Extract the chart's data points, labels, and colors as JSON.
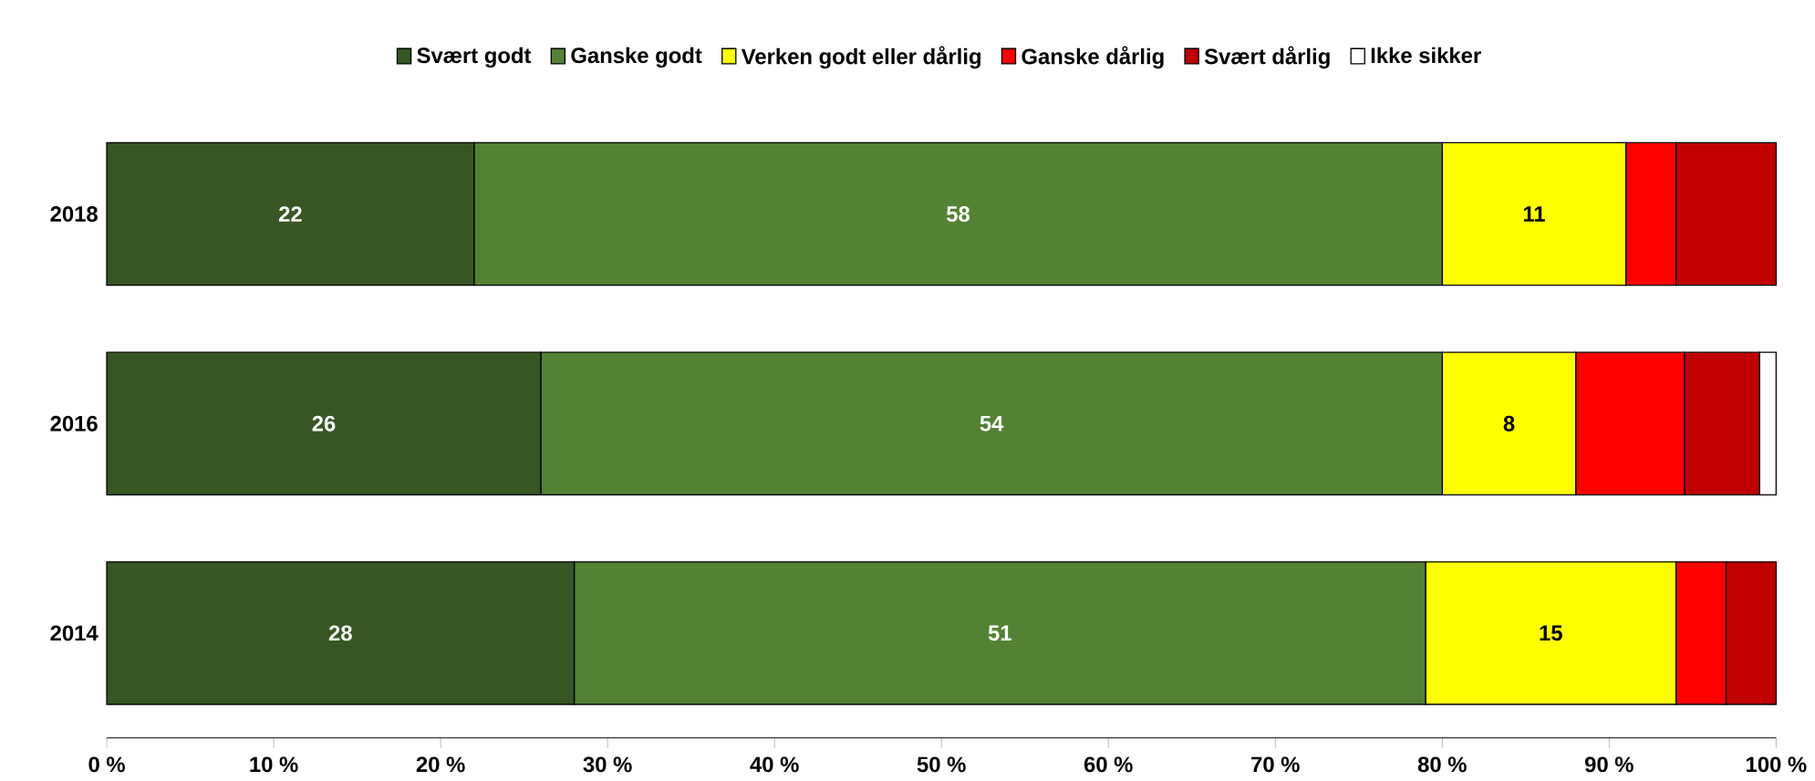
{
  "chart_data": {
    "type": "bar",
    "orientation": "horizontal",
    "stacked": true,
    "legend": "top",
    "categories": [
      "2018",
      "2016",
      "2014"
    ],
    "xlim": [
      0,
      100
    ],
    "xticks": [
      {
        "value": 0,
        "label": "0 %"
      },
      {
        "value": 10,
        "label": "10 %"
      },
      {
        "value": 20,
        "label": "20 %"
      },
      {
        "value": 30,
        "label": "30 %"
      },
      {
        "value": 40,
        "label": "40 %"
      },
      {
        "value": 50,
        "label": "50 %"
      },
      {
        "value": 60,
        "label": "60 %"
      },
      {
        "value": 70,
        "label": "70 %"
      },
      {
        "value": 80,
        "label": "80 %"
      },
      {
        "value": 90,
        "label": "90 %"
      },
      {
        "value": 100,
        "label": "100 %"
      }
    ],
    "series": [
      {
        "name": "Svært godt",
        "color": "#375623",
        "values": [
          22,
          26,
          28
        ],
        "value_labels": [
          "22",
          "26",
          "28"
        ]
      },
      {
        "name": "Ganske godt",
        "color": "#548235",
        "values": [
          58,
          54,
          51
        ],
        "value_labels": [
          "58",
          "54",
          "51"
        ]
      },
      {
        "name": "Verken godt eller dårlig",
        "color": "#ffff00",
        "values": [
          11,
          8,
          15
        ],
        "value_labels": [
          "11",
          "8",
          "15"
        ]
      },
      {
        "name": "Ganske dårlig",
        "color": "#ff0000",
        "values": [
          3,
          6.5,
          3
        ],
        "value_labels": [
          null,
          null,
          null
        ]
      },
      {
        "name": "Svært dårlig",
        "color": "#c00000",
        "values": [
          6,
          4.5,
          3
        ],
        "value_labels": [
          null,
          null,
          null
        ]
      },
      {
        "name": "Ikke sikker",
        "color": "#ffffff",
        "values": [
          0,
          1,
          0
        ],
        "value_labels": [
          null,
          null,
          null
        ]
      }
    ]
  }
}
